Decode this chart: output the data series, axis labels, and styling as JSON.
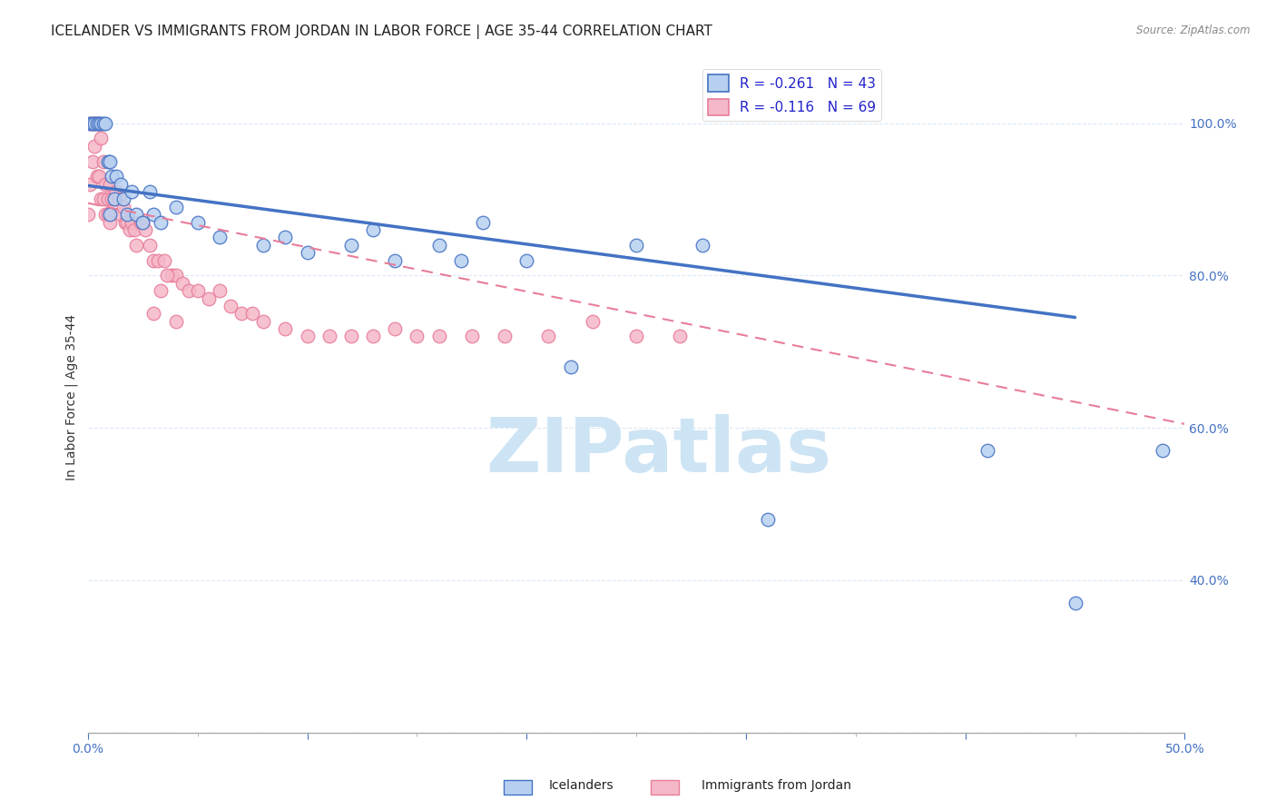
{
  "title": "ICELANDER VS IMMIGRANTS FROM JORDAN IN LABOR FORCE | AGE 35-44 CORRELATION CHART",
  "source": "Source: ZipAtlas.com",
  "ylabel": "In Labor Force | Age 35-44",
  "xlim": [
    0.0,
    0.5
  ],
  "ylim": [
    0.2,
    1.08
  ],
  "xticks": [
    0.0,
    0.1,
    0.2,
    0.3,
    0.4,
    0.5
  ],
  "xticklabels": [
    "0.0%",
    "",
    "",
    "",
    "",
    "50.0%"
  ],
  "yticks": [
    0.2,
    0.4,
    0.6,
    0.8,
    1.0
  ],
  "yticklabels": [
    "",
    "40.0%",
    "60.0%",
    "80.0%",
    "100.0%"
  ],
  "legend_items": [
    {
      "label": "R = -0.261   N = 43",
      "color": "#a8c8f0"
    },
    {
      "label": "R = -0.116   N = 69",
      "color": "#f0a8b8"
    }
  ],
  "blue_scatter_x": [
    0.001,
    0.002,
    0.003,
    0.004,
    0.005,
    0.006,
    0.007,
    0.008,
    0.009,
    0.01,
    0.01,
    0.011,
    0.012,
    0.013,
    0.015,
    0.016,
    0.018,
    0.02,
    0.022,
    0.025,
    0.028,
    0.03,
    0.033,
    0.04,
    0.05,
    0.06,
    0.08,
    0.09,
    0.1,
    0.12,
    0.13,
    0.14,
    0.16,
    0.17,
    0.18,
    0.2,
    0.22,
    0.25,
    0.28,
    0.31,
    0.41,
    0.45,
    0.49
  ],
  "blue_scatter_y": [
    1.0,
    1.0,
    1.0,
    1.0,
    1.0,
    1.0,
    1.0,
    1.0,
    0.95,
    0.95,
    0.88,
    0.93,
    0.9,
    0.93,
    0.92,
    0.9,
    0.88,
    0.91,
    0.88,
    0.87,
    0.91,
    0.88,
    0.87,
    0.89,
    0.87,
    0.85,
    0.84,
    0.85,
    0.83,
    0.84,
    0.86,
    0.82,
    0.84,
    0.82,
    0.87,
    0.82,
    0.68,
    0.84,
    0.84,
    0.48,
    0.57,
    0.37,
    0.57
  ],
  "pink_scatter_x": [
    0.0,
    0.001,
    0.001,
    0.002,
    0.002,
    0.003,
    0.003,
    0.004,
    0.004,
    0.005,
    0.005,
    0.006,
    0.006,
    0.007,
    0.007,
    0.008,
    0.008,
    0.009,
    0.009,
    0.01,
    0.01,
    0.011,
    0.012,
    0.013,
    0.014,
    0.015,
    0.016,
    0.017,
    0.018,
    0.019,
    0.02,
    0.021,
    0.022,
    0.024,
    0.025,
    0.026,
    0.028,
    0.03,
    0.032,
    0.035,
    0.038,
    0.04,
    0.043,
    0.046,
    0.05,
    0.055,
    0.06,
    0.065,
    0.07,
    0.075,
    0.08,
    0.09,
    0.1,
    0.11,
    0.12,
    0.13,
    0.14,
    0.15,
    0.16,
    0.175,
    0.19,
    0.21,
    0.23,
    0.25,
    0.27,
    0.03,
    0.033,
    0.036,
    0.04
  ],
  "pink_scatter_y": [
    0.88,
    1.0,
    0.92,
    1.0,
    0.95,
    1.0,
    0.97,
    1.0,
    0.93,
    1.0,
    0.93,
    0.98,
    0.9,
    0.95,
    0.9,
    0.92,
    0.88,
    0.9,
    0.88,
    0.92,
    0.87,
    0.9,
    0.9,
    0.91,
    0.9,
    0.88,
    0.89,
    0.87,
    0.87,
    0.86,
    0.87,
    0.86,
    0.84,
    0.87,
    0.87,
    0.86,
    0.84,
    0.82,
    0.82,
    0.82,
    0.8,
    0.8,
    0.79,
    0.78,
    0.78,
    0.77,
    0.78,
    0.76,
    0.75,
    0.75,
    0.74,
    0.73,
    0.72,
    0.72,
    0.72,
    0.72,
    0.73,
    0.72,
    0.72,
    0.72,
    0.72,
    0.72,
    0.74,
    0.72,
    0.72,
    0.75,
    0.78,
    0.8,
    0.74
  ],
  "blue_trendline_x": [
    0.0,
    0.45
  ],
  "blue_trendline_y": [
    0.918,
    0.745
  ],
  "pink_trendline_x": [
    0.0,
    0.5
  ],
  "pink_trendline_y": [
    0.895,
    0.605
  ],
  "blue_color": "#4472c4",
  "pink_color": "#e87d9a",
  "blue_fill": "#b8d0f0",
  "pink_fill": "#f5b8c8",
  "watermark": "ZIPatlas",
  "watermark_color": "#cde4f5",
  "background_color": "#ffffff",
  "grid_color": "#dce8f5",
  "title_fontsize": 11,
  "axis_label_fontsize": 10,
  "tick_fontsize": 10
}
